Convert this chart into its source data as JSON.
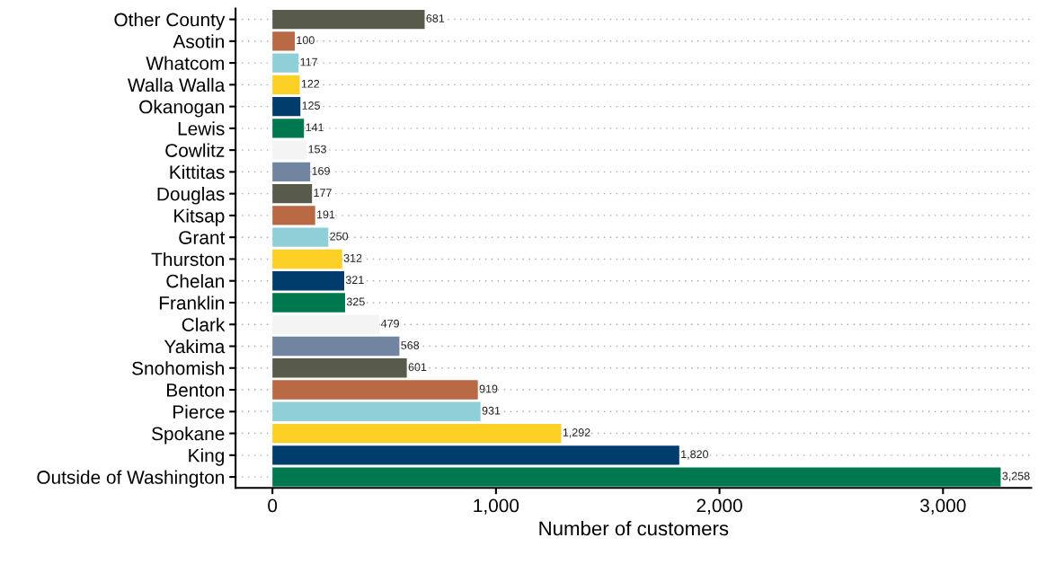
{
  "chart_data": {
    "type": "bar",
    "orientation": "horizontal",
    "xlabel": "Number of customers",
    "categories": [
      "Other County",
      "Asotin",
      "Whatcom",
      "Walla Walla",
      "Okanogan",
      "Lewis",
      "Cowlitz",
      "Kittitas",
      "Douglas",
      "Kitsap",
      "Grant",
      "Thurston",
      "Chelan",
      "Franklin",
      "Clark",
      "Yakima",
      "Snohomish",
      "Benton",
      "Pierce",
      "Spokane",
      "King",
      "Outside of Washington"
    ],
    "values": [
      681,
      100,
      117,
      122,
      125,
      141,
      153,
      169,
      177,
      191,
      250,
      312,
      321,
      325,
      479,
      568,
      601,
      919,
      931,
      1292,
      1820,
      3258
    ],
    "colors": [
      "#585a4a",
      "#b96a45",
      "#8fd0d8",
      "#fdd026",
      "#003c6c",
      "#00784f",
      "#f4f4f4",
      "#7185a0",
      "#585a4a",
      "#b96a45",
      "#8fd0d8",
      "#fdd026",
      "#003c6c",
      "#00784f",
      "#f4f4f4",
      "#7185a0",
      "#585a4a",
      "#b96a45",
      "#8fd0d8",
      "#fdd026",
      "#003c6c",
      "#00784f"
    ],
    "value_labels": [
      "681",
      "100",
      "117",
      "122",
      "125",
      "141",
      "153",
      "169",
      "177",
      "191",
      "250",
      "312",
      "321",
      "325",
      "479",
      "568",
      "601",
      "919",
      "931",
      "1,292",
      "1,820",
      "3,258"
    ],
    "xlim": [
      -165,
      3395
    ],
    "xticks": [
      0,
      {
        "value": 1000,
        "label": "1,000"
      },
      {
        "value": 2000,
        "label": "2,000"
      },
      {
        "value": 3000,
        "label": "3,000"
      }
    ],
    "grid": "y"
  }
}
